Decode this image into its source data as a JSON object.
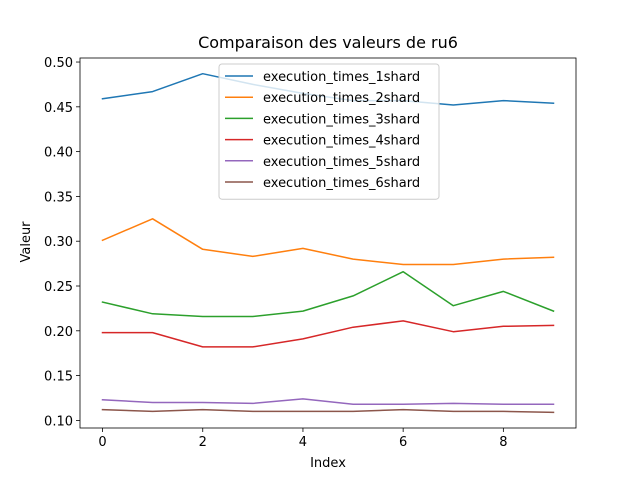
{
  "chart_data": {
    "type": "line",
    "title": "Comparaison des valeurs de ru6",
    "xlabel": "Index",
    "ylabel": "Valeur",
    "x": [
      0,
      1,
      2,
      3,
      4,
      5,
      6,
      7,
      8,
      9
    ],
    "xticks": [
      0,
      2,
      4,
      6,
      8
    ],
    "yticks": [
      0.1,
      0.15,
      0.2,
      0.25,
      0.3,
      0.35,
      0.4,
      0.45,
      0.5
    ],
    "xlim": [
      -0.45,
      9.45
    ],
    "ylim": [
      0.0915,
      0.5045
    ],
    "grid": false,
    "legend_position": "upper-center",
    "series": [
      {
        "name": "execution_times_1shard",
        "color": "#1f77b4",
        "values": [
          0.459,
          0.467,
          0.487,
          0.475,
          0.465,
          0.457,
          0.457,
          0.452,
          0.457,
          0.454
        ]
      },
      {
        "name": "execution_times_2shard",
        "color": "#ff7f0e",
        "values": [
          0.301,
          0.325,
          0.291,
          0.283,
          0.292,
          0.28,
          0.274,
          0.274,
          0.28,
          0.282
        ]
      },
      {
        "name": "execution_times_3shard",
        "color": "#2ca02c",
        "values": [
          0.232,
          0.219,
          0.216,
          0.216,
          0.222,
          0.239,
          0.266,
          0.228,
          0.244,
          0.222
        ]
      },
      {
        "name": "execution_times_4shard",
        "color": "#d62728",
        "values": [
          0.198,
          0.198,
          0.182,
          0.182,
          0.191,
          0.204,
          0.211,
          0.199,
          0.205,
          0.206
        ]
      },
      {
        "name": "execution_times_5shard",
        "color": "#9467bd",
        "values": [
          0.123,
          0.12,
          0.12,
          0.119,
          0.124,
          0.118,
          0.118,
          0.119,
          0.118,
          0.118
        ]
      },
      {
        "name": "execution_times_6shard",
        "color": "#8c564b",
        "values": [
          0.112,
          0.11,
          0.112,
          0.11,
          0.11,
          0.11,
          0.112,
          0.11,
          0.11,
          0.109
        ]
      }
    ]
  }
}
